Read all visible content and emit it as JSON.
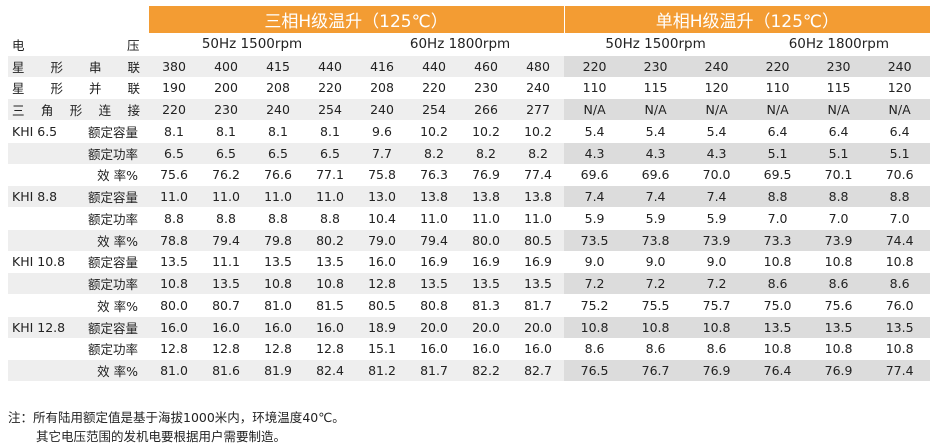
{
  "header": {
    "three_phase": "三相H级温升（125℃）",
    "single_phase": "单相H级温升（125℃）"
  },
  "voltage_row": {
    "label": [
      "电",
      "压"
    ],
    "groups": [
      "50Hz  1500rpm",
      "60Hz  1800rpm",
      "50Hz  1500rpm",
      "60Hz  1800rpm"
    ]
  },
  "connection_rows": [
    {
      "label": [
        "星",
        "形",
        "串",
        "联"
      ],
      "values": [
        "380",
        "400",
        "415",
        "440",
        "416",
        "440",
        "460",
        "480",
        "220",
        "230",
        "240",
        "220",
        "230",
        "240"
      ]
    },
    {
      "label": [
        "星",
        "形",
        "并",
        "联"
      ],
      "values": [
        "190",
        "200",
        "208",
        "220",
        "208",
        "220",
        "230",
        "240",
        "110",
        "115",
        "120",
        "110",
        "115",
        "120"
      ]
    },
    {
      "label": [
        "三",
        "角",
        "形",
        "连",
        "接"
      ],
      "values": [
        "220",
        "230",
        "240",
        "254",
        "240",
        "254",
        "266",
        "277",
        "N/A",
        "N/A",
        "N/A",
        "N/A",
        "N/A",
        "N/A"
      ]
    }
  ],
  "models": [
    {
      "name": "KHI 6.5",
      "rows": [
        {
          "label": "额定容量",
          "values": [
            "8.1",
            "8.1",
            "8.1",
            "8.1",
            "9.6",
            "10.2",
            "10.2",
            "10.2",
            "5.4",
            "5.4",
            "5.4",
            "6.4",
            "6.4",
            "6.4"
          ]
        },
        {
          "label": "额定功率",
          "values": [
            "6.5",
            "6.5",
            "6.5",
            "6.5",
            "7.7",
            "8.2",
            "8.2",
            "8.2",
            "4.3",
            "4.3",
            "4.3",
            "5.1",
            "5.1",
            "5.1"
          ]
        },
        {
          "label": "效  率%",
          "values": [
            "75.6",
            "76.2",
            "76.6",
            "77.1",
            "75.8",
            "76.3",
            "76.9",
            "77.4",
            "69.6",
            "69.6",
            "70.0",
            "69.5",
            "70.1",
            "70.6"
          ]
        }
      ]
    },
    {
      "name": "KHI 8.8",
      "rows": [
        {
          "label": "额定容量",
          "values": [
            "11.0",
            "11.0",
            "11.0",
            "11.0",
            "13.0",
            "13.8",
            "13.8",
            "13.8",
            "7.4",
            "7.4",
            "7.4",
            "8.8",
            "8.8",
            "8.8"
          ]
        },
        {
          "label": "额定功率",
          "values": [
            "8.8",
            "8.8",
            "8.8",
            "8.8",
            "10.4",
            "11.0",
            "11.0",
            "11.0",
            "5.9",
            "5.9",
            "5.9",
            "7.0",
            "7.0",
            "7.0"
          ]
        },
        {
          "label": "效  率%",
          "values": [
            "78.8",
            "79.4",
            "79.8",
            "80.2",
            "79.0",
            "79.4",
            "80.0",
            "80.5",
            "73.5",
            "73.8",
            "73.9",
            "73.3",
            "73.9",
            "74.4"
          ]
        }
      ]
    },
    {
      "name": "KHI 10.8",
      "rows": [
        {
          "label": "额定容量",
          "values": [
            "13.5",
            "11.1",
            "13.5",
            "13.5",
            "16.0",
            "16.9",
            "16.9",
            "16.9",
            "9.0",
            "9.0",
            "9.0",
            "10.8",
            "10.8",
            "10.8"
          ]
        },
        {
          "label": "额定功率",
          "values": [
            "10.8",
            "13.5",
            "10.8",
            "10.8",
            "12.8",
            "13.5",
            "13.5",
            "13.5",
            "7.2",
            "7.2",
            "7.2",
            "8.6",
            "8.6",
            "8.6"
          ]
        },
        {
          "label": "效  率%",
          "values": [
            "80.0",
            "80.7",
            "81.0",
            "81.5",
            "80.5",
            "80.8",
            "81.3",
            "81.7",
            "75.2",
            "75.5",
            "75.7",
            "75.0",
            "75.6",
            "76.0"
          ]
        }
      ]
    },
    {
      "name": "KHI 12.8",
      "rows": [
        {
          "label": "额定容量",
          "values": [
            "16.0",
            "16.0",
            "16.0",
            "16.0",
            "18.9",
            "20.0",
            "20.0",
            "20.0",
            "10.8",
            "10.8",
            "10.8",
            "13.5",
            "13.5",
            "13.5"
          ]
        },
        {
          "label": "额定功率",
          "values": [
            "12.8",
            "12.8",
            "12.8",
            "12.8",
            "15.1",
            "16.0",
            "16.0",
            "16.0",
            "8.6",
            "8.6",
            "8.6",
            "10.8",
            "10.8",
            "10.8"
          ]
        },
        {
          "label": "效  率%",
          "values": [
            "81.0",
            "81.6",
            "81.9",
            "82.4",
            "81.2",
            "81.7",
            "82.2",
            "82.7",
            "76.5",
            "76.7",
            "76.9",
            "76.4",
            "76.9",
            "77.4"
          ]
        }
      ]
    }
  ],
  "notes": [
    "注：所有陆用额定值是基于海拔1000米内，环境温度40℃。",
    "其它电压范围的发机电要根据用户需要制造。"
  ],
  "colors": {
    "header": "#f39c33",
    "band_light": "#eeeeee",
    "band_dark": "#dcdcdc"
  }
}
